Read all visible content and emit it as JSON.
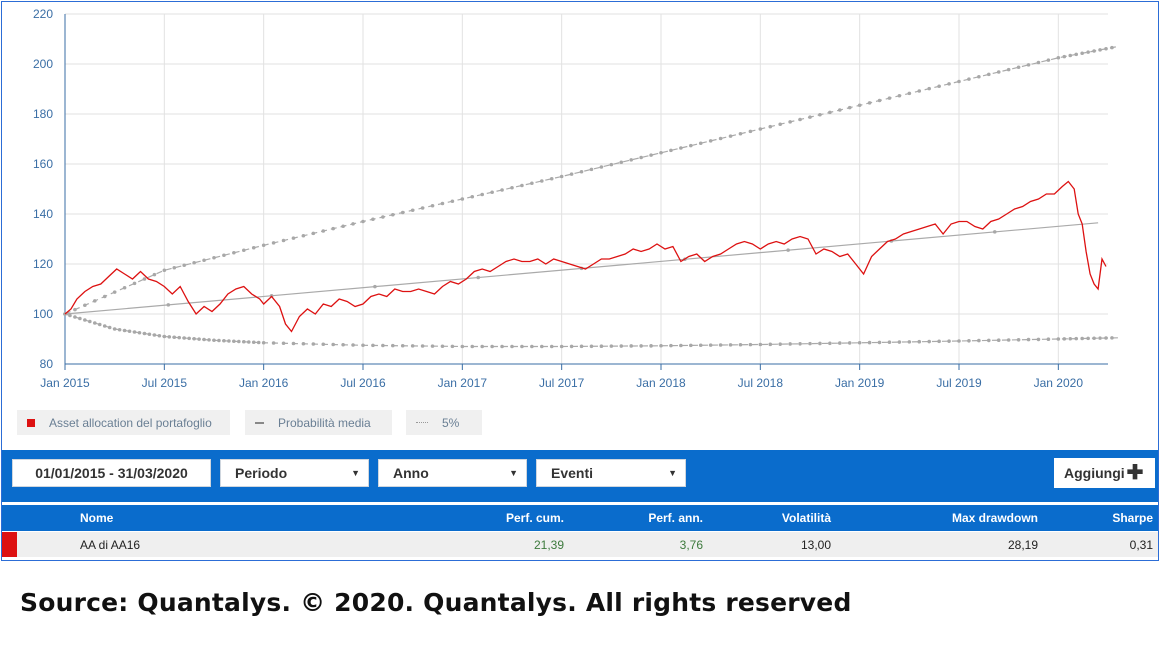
{
  "chart_data": {
    "type": "line",
    "title": "",
    "xlabel": "",
    "ylabel": "",
    "ylim": [
      80,
      220
    ],
    "yticks": [
      80,
      100,
      120,
      140,
      160,
      180,
      200,
      220
    ],
    "xlim": [
      "2015-01-01",
      "2020-03-31"
    ],
    "xticks": [
      "Jan 2015",
      "Jul 2015",
      "Jan 2016",
      "Jul 2016",
      "Jan 2017",
      "Jul 2017",
      "Jan 2018",
      "Jul 2018",
      "Jan 2019",
      "Jul 2019",
      "Jan 2020"
    ],
    "grid": true,
    "legend_position": "bottom-left",
    "series": [
      {
        "name": "Asset allocation del portafoglio",
        "color": "#dd1111",
        "style": "solid",
        "x": [
          2015.0,
          2015.03,
          2015.06,
          2015.1,
          2015.14,
          2015.18,
          2015.22,
          2015.26,
          2015.3,
          2015.34,
          2015.38,
          2015.42,
          2015.46,
          2015.5,
          2015.54,
          2015.58,
          2015.62,
          2015.66,
          2015.7,
          2015.74,
          2015.78,
          2015.82,
          2015.86,
          2015.9,
          2015.94,
          2015.98,
          2016.0,
          2016.04,
          2016.08,
          2016.11,
          2016.14,
          2016.18,
          2016.22,
          2016.26,
          2016.3,
          2016.34,
          2016.38,
          2016.42,
          2016.46,
          2016.5,
          2016.54,
          2016.58,
          2016.62,
          2016.66,
          2016.7,
          2016.74,
          2016.78,
          2016.82,
          2016.86,
          2016.9,
          2016.94,
          2016.98,
          2017.02,
          2017.06,
          2017.1,
          2017.14,
          2017.18,
          2017.22,
          2017.26,
          2017.3,
          2017.34,
          2017.38,
          2017.42,
          2017.46,
          2017.5,
          2017.54,
          2017.58,
          2017.62,
          2017.66,
          2017.7,
          2017.74,
          2017.78,
          2017.82,
          2017.86,
          2017.9,
          2017.94,
          2017.98,
          2018.02,
          2018.06,
          2018.1,
          2018.14,
          2018.18,
          2018.22,
          2018.26,
          2018.3,
          2018.34,
          2018.38,
          2018.42,
          2018.46,
          2018.5,
          2018.54,
          2018.58,
          2018.62,
          2018.66,
          2018.7,
          2018.74,
          2018.78,
          2018.82,
          2018.86,
          2018.9,
          2018.94,
          2018.98,
          2019.02,
          2019.06,
          2019.1,
          2019.14,
          2019.18,
          2019.22,
          2019.26,
          2019.3,
          2019.34,
          2019.38,
          2019.42,
          2019.46,
          2019.5,
          2019.54,
          2019.58,
          2019.62,
          2019.66,
          2019.7,
          2019.74,
          2019.78,
          2019.82,
          2019.86,
          2019.9,
          2019.94,
          2019.98,
          2020.02,
          2020.05,
          2020.08,
          2020.1,
          2020.12,
          2020.14,
          2020.16,
          2020.18,
          2020.2,
          2020.22,
          2020.24
        ],
        "y": [
          100,
          102,
          106,
          109,
          111,
          112,
          115,
          118,
          116,
          114,
          117,
          114,
          113,
          111,
          108,
          111,
          105,
          100,
          103,
          101,
          104,
          108,
          110,
          111,
          108,
          106,
          104,
          107,
          103,
          96,
          93,
          99,
          102,
          100,
          104,
          103,
          106,
          105,
          103,
          104,
          107,
          108,
          107,
          110,
          109,
          109,
          110,
          109,
          108,
          111,
          113,
          112,
          114,
          117,
          118,
          117,
          119,
          121,
          122,
          121,
          121,
          122,
          120,
          122,
          121,
          120,
          119,
          118,
          120,
          122,
          122,
          123,
          124,
          126,
          125,
          126,
          128,
          126,
          127,
          121,
          123,
          124,
          121,
          123,
          124,
          126,
          128,
          129,
          128,
          126,
          128,
          129,
          128,
          130,
          131,
          130,
          124,
          126,
          125,
          123,
          124,
          120,
          116,
          123,
          126,
          129,
          130,
          132,
          133,
          134,
          135,
          136,
          132,
          136,
          137,
          137,
          135,
          134,
          137,
          138,
          140,
          142,
          143,
          145,
          146,
          148,
          148,
          151,
          153,
          150,
          140,
          136,
          125,
          116,
          112,
          110,
          122,
          119
        ]
      },
      {
        "name": "Probabilità media",
        "color": "#aaaaaa",
        "style": "solid",
        "x": [
          2015.0,
          2020.2
        ],
        "y": [
          100,
          136.5
        ]
      },
      {
        "name": "5%",
        "color": "#aaaaaa",
        "style": "dashed-dotted",
        "x": [
          2015.0,
          2015.5,
          2016.0,
          2016.5,
          2017.0,
          2017.5,
          2018.0,
          2018.5,
          2019.0,
          2019.5,
          2020.0,
          2020.3
        ],
        "y": [
          100,
          117.5,
          127.5,
          137,
          146,
          155,
          164.5,
          174,
          183.5,
          193,
          202.5,
          207
        ]
      },
      {
        "name": "5%",
        "color": "#aaaaaa",
        "style": "dashed-dotted",
        "x": [
          2015.0,
          2015.25,
          2015.5,
          2015.75,
          2016.0,
          2016.5,
          2017.0,
          2017.5,
          2018.0,
          2018.5,
          2019.0,
          2019.5,
          2020.0,
          2020.3
        ],
        "y": [
          100,
          94,
          91,
          89.5,
          88.5,
          87.5,
          87,
          87,
          87.3,
          87.8,
          88.5,
          89.2,
          90,
          90.5
        ]
      }
    ]
  },
  "legend": {
    "items": [
      {
        "label": "Asset allocation del portafoglio",
        "color": "#dd1111"
      },
      {
        "label": "Probabilità media",
        "color": "#aaaaaa"
      },
      {
        "label": "5%",
        "color": "#aaaaaa"
      }
    ]
  },
  "toolbar": {
    "date_range": "01/01/2015 - 31/03/2020",
    "periodo": "Periodo",
    "anno": "Anno",
    "eventi": "Eventi",
    "add_label": "Aggiungi",
    "add_icon": "plus-icon"
  },
  "table": {
    "headers": {
      "nome": "Nome",
      "perf_cum": "Perf. cum.",
      "perf_ann": "Perf. ann.",
      "volatilita": "Volatilità",
      "max_drawdown": "Max drawdown",
      "sharpe": "Sharpe"
    },
    "rows": [
      {
        "color": "#dd1111",
        "nome": "AA di AA16",
        "perf_cum": "21,39",
        "perf_ann": "3,76",
        "volatilita": "13,00",
        "max_drawdown": "28,19",
        "sharpe": "0,31"
      }
    ]
  },
  "source": "Source: Quantalys. © 2020. Quantalys. All rights reserved"
}
